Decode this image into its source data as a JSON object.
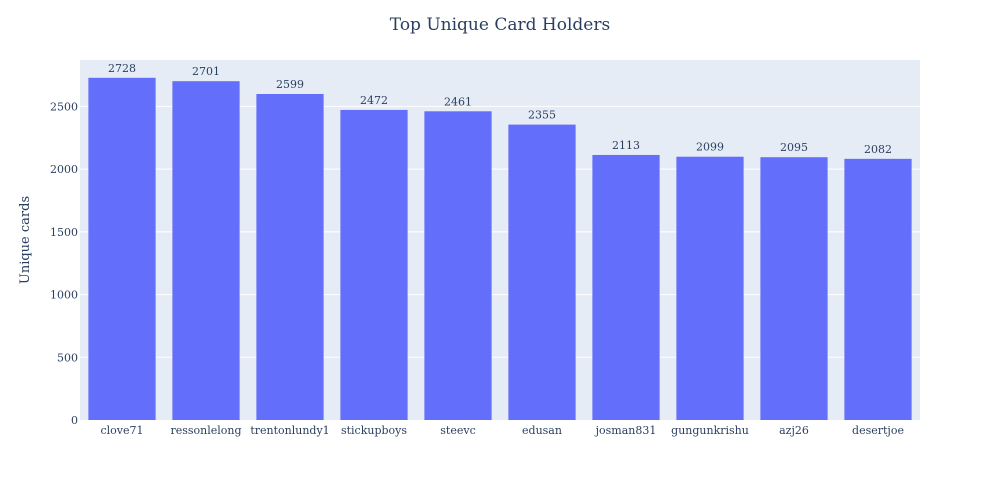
{
  "chart_data": {
    "type": "bar",
    "title": "Top Unique Card Holders",
    "xlabel": "",
    "ylabel": "Unique cards",
    "categories": [
      "clove71",
      "ressonlelong",
      "trentonlundy1",
      "stickupboys",
      "steevc",
      "edusan",
      "josman831",
      "gungunkrishu",
      "azj26",
      "desertjoe"
    ],
    "values": [
      2728,
      2701,
      2599,
      2472,
      2461,
      2355,
      2113,
      2099,
      2095,
      2082
    ],
    "ylim": [
      0,
      2870
    ],
    "yticks": [
      0,
      500,
      1000,
      1500,
      2000,
      2500
    ],
    "grid": true,
    "legend": "none",
    "colors": {
      "bar": "#636efa",
      "plot_background": "#e5ecf6",
      "grid": "#ffffff",
      "text": "#2a3f5f"
    }
  }
}
